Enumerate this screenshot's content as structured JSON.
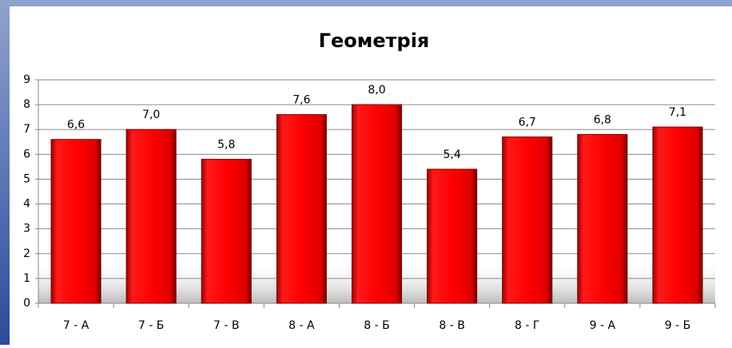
{
  "chart_data": {
    "type": "bar",
    "title": "Геометрія",
    "categories": [
      "7 - А",
      "7 - Б",
      "7 - В",
      "8 - А",
      "8 - Б",
      "8 - В",
      "8 - Г",
      "9 - А",
      "9 - Б"
    ],
    "values": [
      6.6,
      7.0,
      5.8,
      7.6,
      8.0,
      5.4,
      6.7,
      6.8,
      7.1
    ],
    "value_labels": [
      "6,6",
      "7,0",
      "5,8",
      "7,6",
      "8,0",
      "5,4",
      "6,7",
      "6,8",
      "7,1"
    ],
    "color": "#ff0000",
    "ylim": [
      0,
      9
    ],
    "yticks": [
      0,
      1,
      2,
      3,
      4,
      5,
      6,
      7,
      8,
      9
    ],
    "grid": true
  }
}
